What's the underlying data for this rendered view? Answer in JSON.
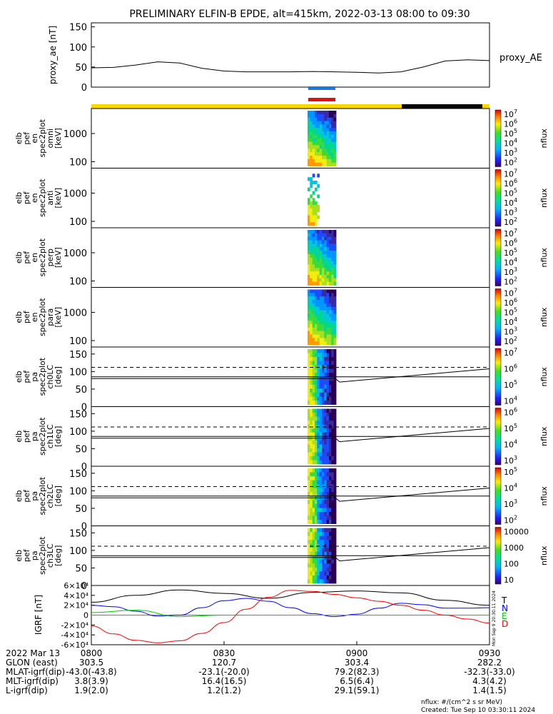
{
  "chart_data": [
    {
      "type": "line",
      "title": "PRELIMINARY ELFIN-B EPDE, alt=415km, 2022-03-13 08:00 to 09:30",
      "ylabel": "proxy_ae [nT]",
      "yticks": [
        "0",
        "50",
        "100",
        "150"
      ],
      "ylim": [
        0,
        160
      ],
      "series": [
        {
          "name": "proxy_AE",
          "x_min": [
            0,
            5,
            10,
            15,
            20,
            25,
            30,
            35,
            40,
            45,
            50,
            55,
            60,
            65,
            70,
            75,
            80,
            85,
            90
          ],
          "values": [
            48,
            49,
            55,
            63,
            60,
            47,
            40,
            38,
            38,
            38,
            39,
            38,
            37,
            35,
            38,
            50,
            65,
            68,
            66
          ]
        }
      ]
    },
    {
      "type": "heatmap",
      "panels": [
        {
          "ylabel": [
            "elb",
            "pef",
            "en",
            "spec2plot",
            "omni",
            "[keV]"
          ],
          "yticks": [
            "100",
            "1000"
          ],
          "cbar": [
            "10^7",
            "10^6",
            "10^5",
            "10^4",
            "10^3",
            "10^2"
          ],
          "cbar_label": "nflux"
        },
        {
          "ylabel": [
            "elb",
            "pef",
            "en",
            "spec2plot",
            "anti",
            "[keV]"
          ],
          "yticks": [
            "100",
            "1000"
          ],
          "cbar": [
            "10^7",
            "10^6",
            "10^5",
            "10^4",
            "10^3",
            "10^2"
          ],
          "cbar_label": "nflux"
        },
        {
          "ylabel": [
            "elb",
            "pef",
            "en",
            "spec2plot",
            "perp",
            "[keV]"
          ],
          "yticks": [
            "100",
            "1000"
          ],
          "cbar": [
            "10^7",
            "10^6",
            "10^5",
            "10^4",
            "10^3",
            "10^2"
          ],
          "cbar_label": "nflux"
        },
        {
          "ylabel": [
            "elb",
            "pef",
            "en",
            "spec2plot",
            "para",
            "[keV]"
          ],
          "yticks": [
            "100",
            "1000"
          ],
          "cbar": [
            "10^7",
            "10^6",
            "10^5",
            "10^4",
            "10^3",
            "10^2"
          ],
          "cbar_label": "nflux"
        },
        {
          "ylabel": [
            "elb",
            "pef",
            "pa",
            "spec2plot",
            "ch0LC",
            "[deg]"
          ],
          "yticks": [
            "0",
            "50",
            "100",
            "150"
          ],
          "cbar": [
            "10^7",
            "10^6",
            "10^5",
            "10^4"
          ],
          "cbar_label": "nflux"
        },
        {
          "ylabel": [
            "elb",
            "pef",
            "pa",
            "spec2plot",
            "ch1LC",
            "[deg]"
          ],
          "yticks": [
            "0",
            "50",
            "100",
            "150"
          ],
          "cbar": [
            "10^6",
            "10^5",
            "10^4",
            "10^3"
          ],
          "cbar_label": "nflux"
        },
        {
          "ylabel": [
            "elb",
            "pef",
            "pa",
            "spec2plot",
            "ch2LC",
            "[deg]"
          ],
          "yticks": [
            "0",
            "50",
            "100",
            "150"
          ],
          "cbar": [
            "10^5",
            "10^4",
            "10^3",
            "10^2"
          ],
          "cbar_label": "nflux"
        },
        {
          "ylabel": [
            "elb",
            "pef",
            "pa",
            "spec2plot",
            "ch3LC",
            "[deg]"
          ],
          "yticks": [
            "0",
            "50",
            "100",
            "150"
          ],
          "cbar": [
            "10000",
            "1000",
            "100",
            "10"
          ],
          "cbar_label": "nflux"
        }
      ]
    },
    {
      "type": "line",
      "ylabel": "IGRF [nT]",
      "yticks": [
        "-6×10⁴",
        "-4×10⁴",
        "-2×10⁴",
        "0",
        "2×10⁴",
        "4×10⁴",
        "6×10⁴"
      ],
      "ylim": [
        -60000,
        60000
      ],
      "series": [
        {
          "name": "T",
          "color": "#000000",
          "x_min": [
            0,
            10,
            20,
            30,
            40,
            50,
            60,
            70,
            80,
            90
          ],
          "values": [
            26000,
            40000,
            51000,
            44000,
            34000,
            46000,
            49000,
            45000,
            30000,
            20000
          ]
        },
        {
          "name": "N",
          "color": "#0000ff",
          "x_min": [
            0,
            5,
            10,
            15,
            20,
            25,
            30,
            35,
            40,
            45,
            50,
            55,
            60,
            65,
            70,
            75,
            80,
            85,
            90
          ],
          "values": [
            20000,
            17000,
            8000,
            -2000,
            0,
            15000,
            29000,
            34000,
            28000,
            15000,
            3000,
            -3000,
            2000,
            14000,
            24000,
            21000,
            14000,
            14000,
            15000
          ]
        },
        {
          "name": "E",
          "color": "#00cc00",
          "x_min": [
            0,
            10,
            20,
            30,
            45,
            60,
            75,
            90
          ],
          "values": [
            5000,
            10000,
            -3000,
            0,
            0,
            0,
            0,
            0
          ]
        },
        {
          "name": "D",
          "color": "#ff0000",
          "x_min": [
            0,
            5,
            10,
            15,
            20,
            25,
            30,
            35,
            40,
            45,
            50,
            55,
            60,
            65,
            70,
            75,
            80,
            85,
            90
          ],
          "values": [
            -22000,
            -38000,
            -51000,
            -56000,
            -52000,
            -37000,
            -15000,
            12000,
            36000,
            50000,
            48000,
            42000,
            35000,
            28000,
            20000,
            10000,
            0,
            -8000,
            -16000
          ]
        }
      ]
    }
  ],
  "texts": {
    "title": "PRELIMINARY ELFIN-B EPDE, alt=415km, 2022-03-13 08:00 to 09:30",
    "proxy_ae_label": "proxy_AE",
    "legend": [
      "T",
      "N",
      "E",
      "D"
    ],
    "side_stamp": "Mon Sep 9 20:30:11 2024",
    "cbar_label": "nflux"
  },
  "footer": {
    "rows": [
      {
        "label": "2022 Mar 13",
        "values": [
          "0800",
          "0830",
          "0900",
          "0930"
        ]
      },
      {
        "label": "GLON (east)",
        "values": [
          "303.5",
          "120.7",
          "303.4",
          "282.2"
        ]
      },
      {
        "label": "MLAT-igrf(dip)",
        "values": [
          "-43.0(-43.8)",
          "-23.1(-20.0)",
          "79.2(82.3)",
          "-32.3(-33.0)"
        ]
      },
      {
        "label": "MLT-igrf(dip)",
        "values": [
          "3.8(3.9)",
          "16.4(16.5)",
          "6.5(6.4)",
          "4.3(4.2)"
        ]
      },
      {
        "label": "L-igrf(dip)",
        "values": [
          "1.9(2.0)",
          "1.2(1.2)",
          "29.1(59.1)",
          "1.4(1.5)"
        ]
      }
    ],
    "units": "nflux: #/(cm^2 s sr MeV)",
    "created": "Created: Tue Sep 10 03:30:11 2024"
  },
  "colors": {
    "blue_bar": "#1e78dc",
    "red_bar": "#e01010",
    "yellow_bar": "#ffd700",
    "black_bar": "#000000"
  }
}
